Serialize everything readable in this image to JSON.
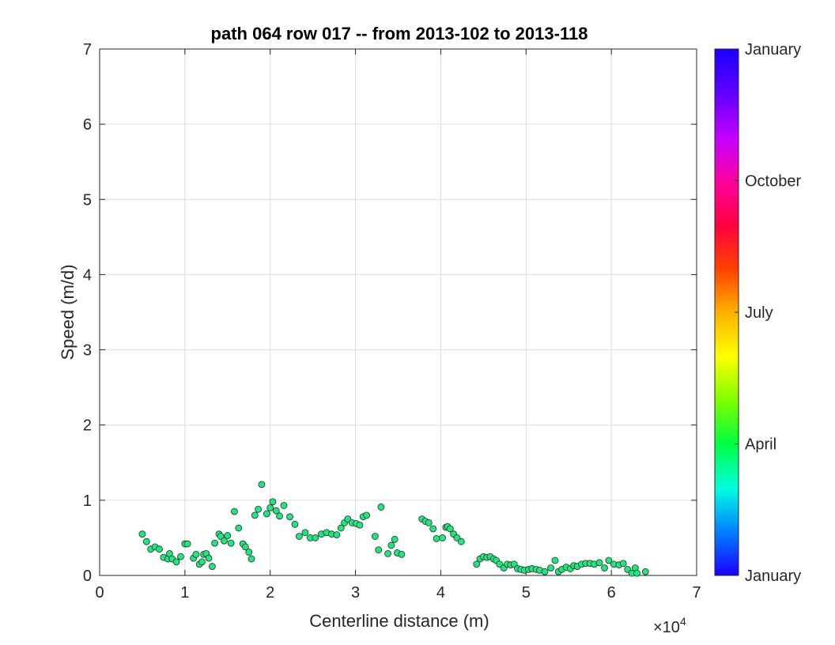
{
  "chart_data": {
    "type": "scatter",
    "title": "path 064 row 017 -- from 2013-102 to 2013-118",
    "xlabel": "Centerline distance (m)",
    "ylabel": "Speed (m/d)",
    "x_exponent_label": "×10",
    "x_exponent_power": "4",
    "xlim": [
      0,
      70000
    ],
    "ylim": [
      0,
      7
    ],
    "xticks": [
      0,
      10000,
      20000,
      30000,
      40000,
      50000,
      60000,
      70000
    ],
    "xtick_labels": [
      "0",
      "1",
      "2",
      "3",
      "4",
      "5",
      "6",
      "7"
    ],
    "yticks": [
      0,
      1,
      2,
      3,
      4,
      5,
      6,
      7
    ],
    "ytick_labels": [
      "0",
      "1",
      "2",
      "3",
      "4",
      "5",
      "6",
      "7"
    ],
    "grid": true,
    "marker_color": "#1de87c",
    "marker_edge": "#2b2b2b",
    "colorbar": {
      "ticks": [
        "January",
        "April",
        "July",
        "October",
        "January"
      ],
      "colors": [
        "#1a00ff",
        "#0080ff",
        "#00ffe0",
        "#00ff40",
        "#80ff00",
        "#ffff00",
        "#ffb000",
        "#ff4000",
        "#ff0040",
        "#ff00a0",
        "#c000ff",
        "#6000ff",
        "#1a00ff"
      ]
    },
    "series": [
      {
        "x": [
          5000,
          5500,
          6000,
          6500,
          7000,
          7500,
          8000,
          8200,
          8500,
          9000,
          9500,
          10000,
          10300,
          11000,
          11300,
          11700,
          12000,
          12200,
          12500,
          12800,
          13200,
          13500,
          14000,
          14200,
          14600,
          15000,
          15400,
          15800,
          16300,
          16800,
          17100,
          17500,
          17800,
          18200,
          18600,
          19000,
          19600,
          20000,
          20300,
          20700,
          21100,
          21600,
          22300,
          22900,
          23400,
          24100,
          24700,
          25300,
          26000,
          26600,
          27200,
          27800,
          28300,
          28700,
          29100,
          29600,
          30100,
          30500,
          30900,
          31300,
          32300,
          32700,
          33000,
          33800,
          34200,
          34600,
          34900,
          35400,
          37800,
          38200,
          38600,
          39100,
          39500,
          40200,
          40600,
          40800,
          41100,
          41500,
          41900,
          42400,
          44200,
          44600,
          45000,
          45400,
          45800,
          46200,
          46500,
          46900,
          47400,
          47800,
          48200,
          48600,
          49000,
          49400,
          49800,
          50300,
          50700,
          51200,
          51600,
          52200,
          52900,
          53400,
          53800,
          54200,
          54700,
          55200,
          55600,
          56000,
          56500,
          57000,
          57500,
          58000,
          58600,
          59200,
          59700,
          60300,
          60900,
          61400,
          61900,
          62400,
          62800,
          63000,
          64000
        ],
        "y": [
          0.55,
          0.45,
          0.35,
          0.38,
          0.35,
          0.24,
          0.22,
          0.29,
          0.22,
          0.18,
          0.25,
          0.42,
          0.42,
          0.23,
          0.28,
          0.15,
          0.18,
          0.28,
          0.29,
          0.23,
          0.12,
          0.43,
          0.55,
          0.52,
          0.46,
          0.53,
          0.43,
          0.85,
          0.63,
          0.42,
          0.38,
          0.31,
          0.22,
          0.8,
          0.88,
          1.21,
          0.82,
          0.9,
          0.98,
          0.86,
          0.79,
          0.93,
          0.78,
          0.68,
          0.52,
          0.57,
          0.5,
          0.5,
          0.55,
          0.57,
          0.55,
          0.54,
          0.63,
          0.7,
          0.75,
          0.7,
          0.69,
          0.67,
          0.78,
          0.8,
          0.52,
          0.34,
          0.91,
          0.29,
          0.4,
          0.48,
          0.3,
          0.28,
          0.75,
          0.72,
          0.7,
          0.62,
          0.49,
          0.5,
          0.64,
          0.65,
          0.62,
          0.55,
          0.5,
          0.45,
          0.15,
          0.22,
          0.25,
          0.24,
          0.25,
          0.22,
          0.2,
          0.15,
          0.1,
          0.15,
          0.14,
          0.15,
          0.09,
          0.08,
          0.07,
          0.08,
          0.09,
          0.08,
          0.07,
          0.05,
          0.1,
          0.2,
          0.05,
          0.08,
          0.11,
          0.09,
          0.13,
          0.12,
          0.15,
          0.16,
          0.16,
          0.15,
          0.17,
          0.1,
          0.2,
          0.15,
          0.14,
          0.16,
          0.08,
          0.03,
          0.1,
          0.03,
          0.05
        ]
      }
    ]
  }
}
